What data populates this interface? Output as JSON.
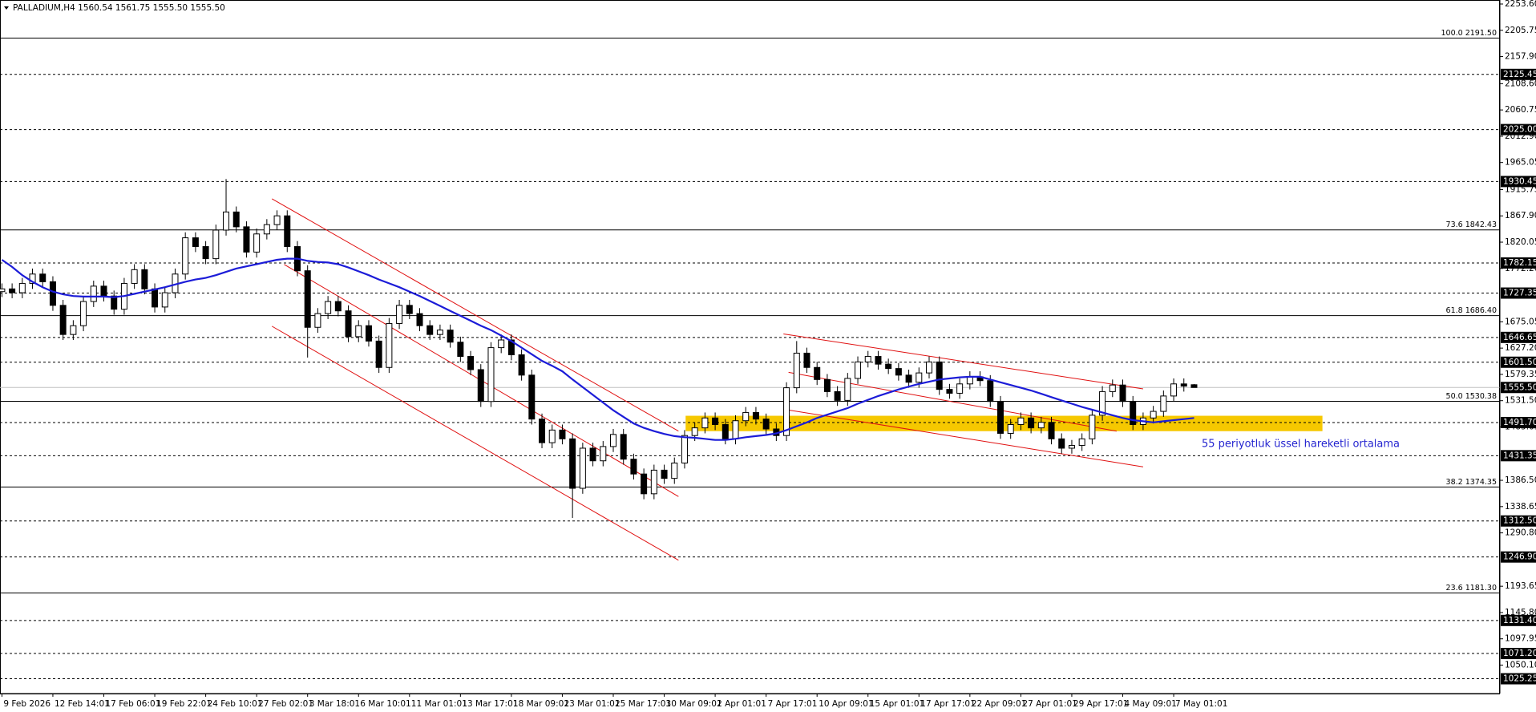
{
  "chart_data": {
    "type": "candlestick",
    "title": "PALLADIUM,H4  1560.54 1561.75 1555.50 1555.50",
    "categories": [
      "9 Feb 2026",
      null,
      null,
      null,
      null,
      "12 Feb 14:01",
      null,
      null,
      null,
      null,
      "17 Feb 06:01",
      null,
      null,
      null,
      null,
      "19 Feb 22:01",
      null,
      null,
      null,
      null,
      "24 Feb 10:01",
      null,
      null,
      null,
      null,
      "27 Feb 02:01",
      null,
      null,
      null,
      null,
      "3 Mar 18:01",
      null,
      null,
      null,
      null,
      "6 Mar 10:01",
      null,
      null,
      null,
      null,
      "11 Mar 01:01",
      null,
      null,
      null,
      null,
      "13 Mar 17:01",
      null,
      null,
      null,
      null,
      "18 Mar 09:01",
      null,
      null,
      null,
      null,
      "23 Mar 01:01",
      null,
      null,
      null,
      null,
      "25 Mar 17:01",
      null,
      null,
      null,
      null,
      "30 Mar 09:01",
      null,
      null,
      null,
      null,
      "2 Apr 01:01",
      null,
      null,
      null,
      null,
      "7 Apr 17:01",
      null,
      null,
      null,
      null,
      "10 Apr 09:01",
      null,
      null,
      null,
      null,
      "15 Apr 01:01",
      null,
      null,
      null,
      null,
      "17 Apr 17:01",
      null,
      null,
      null,
      null,
      "22 Apr 09:01",
      null,
      null,
      null,
      null,
      "27 Apr 01:01",
      null,
      null,
      null,
      null,
      "29 Apr 17:01",
      null,
      null,
      null,
      null,
      "4 May 09:01",
      null,
      null,
      null,
      null,
      "7 May 01:01",
      null,
      null
    ],
    "open": [
      1730,
      1735,
      1728,
      1745,
      1762,
      1748,
      1705,
      1652,
      1668,
      1712,
      1740,
      1722,
      1698,
      1745,
      1770,
      1735,
      1702,
      1728,
      1762,
      1828,
      1812,
      1790,
      1842,
      1875,
      1848,
      1802,
      1835,
      1852,
      1868,
      1812,
      1768,
      1665,
      1690,
      1712,
      1695,
      1648,
      1668,
      1640,
      1592,
      1672,
      1705,
      1690,
      1668,
      1652,
      1660,
      1638,
      1612,
      1588,
      1530,
      1628,
      1642,
      1615,
      1578,
      1498,
      1455,
      1478,
      1462,
      1372,
      1445,
      1422,
      1448,
      1470,
      1425,
      1398,
      1362,
      1405,
      1390,
      1418,
      1468,
      1482,
      1500,
      1488,
      1462,
      1495,
      1510,
      1498,
      1480,
      1468,
      1555,
      1618,
      1592,
      1570,
      1548,
      1532,
      1572,
      1602,
      1612,
      1598,
      1590,
      1578,
      1565,
      1582,
      1602,
      1552,
      1545,
      1562,
      1575,
      1568,
      1530,
      1472,
      1488,
      1500,
      1482,
      1492,
      1462,
      1445,
      1450,
      1462,
      1505,
      1548,
      1560,
      1530,
      1488,
      1500,
      1512,
      1540,
      1562,
      1560.54
    ],
    "high": [
      1745,
      1745,
      1755,
      1772,
      1772,
      1758,
      1715,
      1678,
      1722,
      1750,
      1750,
      1732,
      1755,
      1780,
      1780,
      1745,
      1738,
      1772,
      1838,
      1838,
      1822,
      1852,
      1935,
      1885,
      1858,
      1845,
      1862,
      1878,
      1878,
      1822,
      1778,
      1700,
      1722,
      1722,
      1705,
      1678,
      1678,
      1650,
      1682,
      1715,
      1715,
      1700,
      1678,
      1670,
      1670,
      1648,
      1622,
      1598,
      1638,
      1652,
      1652,
      1625,
      1588,
      1508,
      1488,
      1488,
      1472,
      1455,
      1455,
      1458,
      1480,
      1480,
      1435,
      1408,
      1415,
      1415,
      1428,
      1478,
      1492,
      1510,
      1510,
      1498,
      1505,
      1520,
      1520,
      1508,
      1490,
      1565,
      1640,
      1628,
      1602,
      1580,
      1558,
      1582,
      1612,
      1622,
      1622,
      1608,
      1600,
      1588,
      1592,
      1612,
      1612,
      1562,
      1572,
      1585,
      1585,
      1578,
      1540,
      1498,
      1510,
      1510,
      1502,
      1502,
      1472,
      1460,
      1472,
      1515,
      1558,
      1570,
      1570,
      1540,
      1510,
      1522,
      1550,
      1572,
      1572,
      1561.75
    ],
    "low": [
      1720,
      1718,
      1718,
      1735,
      1738,
      1695,
      1642,
      1642,
      1658,
      1702,
      1712,
      1688,
      1688,
      1735,
      1725,
      1692,
      1692,
      1718,
      1752,
      1802,
      1780,
      1780,
      1832,
      1838,
      1792,
      1792,
      1825,
      1842,
      1802,
      1758,
      1610,
      1655,
      1680,
      1685,
      1638,
      1638,
      1630,
      1582,
      1582,
      1662,
      1680,
      1658,
      1642,
      1642,
      1628,
      1602,
      1578,
      1520,
      1520,
      1618,
      1605,
      1568,
      1488,
      1445,
      1445,
      1452,
      1318,
      1362,
      1412,
      1412,
      1438,
      1415,
      1388,
      1352,
      1352,
      1380,
      1380,
      1408,
      1458,
      1472,
      1478,
      1452,
      1452,
      1485,
      1488,
      1470,
      1458,
      1458,
      1545,
      1582,
      1560,
      1538,
      1522,
      1522,
      1562,
      1592,
      1588,
      1580,
      1568,
      1555,
      1555,
      1572,
      1542,
      1535,
      1535,
      1552,
      1558,
      1520,
      1462,
      1462,
      1478,
      1472,
      1472,
      1452,
      1435,
      1435,
      1440,
      1452,
      1495,
      1538,
      1520,
      1478,
      1478,
      1490,
      1502,
      1530,
      1548,
      1555.5
    ],
    "close": [
      1735,
      1728,
      1745,
      1762,
      1748,
      1705,
      1652,
      1668,
      1712,
      1740,
      1722,
      1698,
      1745,
      1770,
      1735,
      1702,
      1728,
      1762,
      1828,
      1812,
      1790,
      1842,
      1875,
      1848,
      1802,
      1835,
      1852,
      1868,
      1812,
      1768,
      1665,
      1690,
      1712,
      1695,
      1648,
      1668,
      1640,
      1592,
      1672,
      1705,
      1690,
      1668,
      1652,
      1660,
      1638,
      1612,
      1588,
      1530,
      1628,
      1642,
      1615,
      1578,
      1498,
      1455,
      1478,
      1462,
      1372,
      1445,
      1422,
      1448,
      1470,
      1425,
      1398,
      1362,
      1405,
      1390,
      1418,
      1468,
      1482,
      1500,
      1488,
      1462,
      1495,
      1510,
      1498,
      1480,
      1468,
      1555,
      1618,
      1592,
      1570,
      1548,
      1532,
      1572,
      1602,
      1612,
      1598,
      1590,
      1578,
      1565,
      1582,
      1602,
      1552,
      1545,
      1562,
      1575,
      1568,
      1530,
      1472,
      1488,
      1500,
      1482,
      1492,
      1462,
      1445,
      1450,
      1462,
      1505,
      1548,
      1560,
      1530,
      1488,
      1500,
      1512,
      1540,
      1562,
      1558,
      1555.5
    ],
    "up_color": "#ffffff",
    "down_color": "#000000",
    "edge_color": "#000000",
    "ema": {
      "color": "#1c1cd8",
      "values": [
        1788,
        1775,
        1760,
        1748,
        1738,
        1730,
        1725,
        1722,
        1721,
        1721,
        1721,
        1720,
        1722,
        1726,
        1730,
        1734,
        1738,
        1743,
        1748,
        1752,
        1755,
        1760,
        1766,
        1772,
        1776,
        1780,
        1784,
        1788,
        1790,
        1790,
        1786,
        1784,
        1783,
        1780,
        1774,
        1767,
        1760,
        1752,
        1745,
        1738,
        1730,
        1722,
        1713,
        1704,
        1695,
        1686,
        1677,
        1668,
        1660,
        1650,
        1640,
        1628,
        1616,
        1604,
        1595,
        1585,
        1570,
        1556,
        1542,
        1528,
        1514,
        1502,
        1490,
        1482,
        1476,
        1471,
        1467,
        1465,
        1464,
        1462,
        1460,
        1460,
        1462,
        1465,
        1467,
        1469,
        1472,
        1478,
        1485,
        1492,
        1500,
        1506,
        1512,
        1518,
        1526,
        1533,
        1540,
        1546,
        1552,
        1557,
        1562,
        1566,
        1570,
        1572,
        1574,
        1575,
        1575,
        1570,
        1565,
        1560,
        1555,
        1550,
        1544,
        1538,
        1532,
        1526,
        1520,
        1515,
        1510,
        1505,
        1500,
        1496,
        1494,
        1492,
        1494,
        1496,
        1498,
        1500
      ]
    },
    "annotation": {
      "text": "55 periyotluk üssel hareketli ortalama",
      "color": "#2525d0"
    },
    "trendlines": [
      {
        "color": "#e01010",
        "start": [
          26.5,
          1899
        ],
        "end": [
          66.4,
          1476
        ]
      },
      {
        "color": "#e01010",
        "start": [
          27.7,
          1779.5
        ],
        "end": [
          66.4,
          1357
        ]
      },
      {
        "color": "#e01010",
        "start": [
          26.5,
          1667
        ],
        "end": [
          66.4,
          1241
        ]
      },
      {
        "color": "#e01010",
        "start": [
          76.7,
          1653
        ],
        "end": [
          112,
          1553
        ]
      },
      {
        "color": "#e01010",
        "start": [
          77.2,
          1583
        ],
        "end": [
          109.4,
          1476
        ]
      },
      {
        "color": "#e01010",
        "start": [
          76.7,
          1516
        ],
        "end": [
          112,
          1411
        ]
      }
    ],
    "zone": {
      "color": "#f6c800",
      "start": 67.1,
      "end": 129.6,
      "low": 1476,
      "high": 1504
    },
    "levels": [
      {
        "value": 2125.45,
        "label": "2125.45"
      },
      {
        "value": 2025,
        "label": "2025.00"
      },
      {
        "value": 1930.45,
        "label": "1930.45"
      },
      {
        "value": 1782.15,
        "label": "1782.15"
      },
      {
        "value": 1727.35,
        "label": "1727.35"
      },
      {
        "value": 1646.65,
        "label": "1646.65"
      },
      {
        "value": 1601.5,
        "label": "1601.50"
      },
      {
        "value": 1491.7,
        "label": "1491.70"
      },
      {
        "value": 1431.35,
        "label": "1431.35"
      },
      {
        "value": 1312.5,
        "label": "1312.50"
      },
      {
        "value": 1246.9,
        "label": "1246.90"
      },
      {
        "value": 1131.4,
        "label": "1131.40"
      },
      {
        "value": 1071.2,
        "label": "1071.20"
      },
      {
        "value": 1025.25,
        "label": "1025.25"
      }
    ],
    "fib_levels": [
      {
        "value": 2191.5,
        "label": "100.0 2191.50"
      },
      {
        "value": 1842.43,
        "label": "73.6 1842.43"
      },
      {
        "value": 1686.4,
        "label": "61.8 1686.40"
      },
      {
        "value": 1530.38,
        "label": "50.0 1530.38"
      },
      {
        "value": 1374.35,
        "label": "38.2 1374.35"
      },
      {
        "value": 1181.3,
        "label": "23.6 1181.30"
      }
    ],
    "last_price": {
      "value": 1555.5,
      "label": "1555.50"
    },
    "ylim": [
      998.3,
      2260.9
    ],
    "yticks": [
      {
        "value": 2253.6,
        "label": "2253.60"
      },
      2205.75,
      {
        "value": 2157.9,
        "label": "2157.90"
      },
      {
        "value": 2108.6,
        "label": "2108.60"
      },
      2060.75,
      {
        "value": 2012.9,
        "label": "2012.90"
      },
      1965.05,
      1915.75,
      {
        "value": 1867.9,
        "label": "1867.90"
      },
      1820.05,
      {
        "value": 1772.2,
        "label": "1772.20"
      },
      1675.05,
      {
        "value": 1627.2,
        "label": "1627.20"
      },
      1579.35,
      {
        "value": 1531.5,
        "label": "1531.50"
      },
      1483.65,
      {
        "value": 1386.5,
        "label": "1386.50"
      },
      1338.65,
      {
        "value": 1290.8,
        "label": "1290.80"
      },
      1193.65,
      {
        "value": 1145.8,
        "label": "1145.80"
      },
      1097.95,
      {
        "value": 1050.1,
        "label": "1050.10"
      }
    ]
  }
}
